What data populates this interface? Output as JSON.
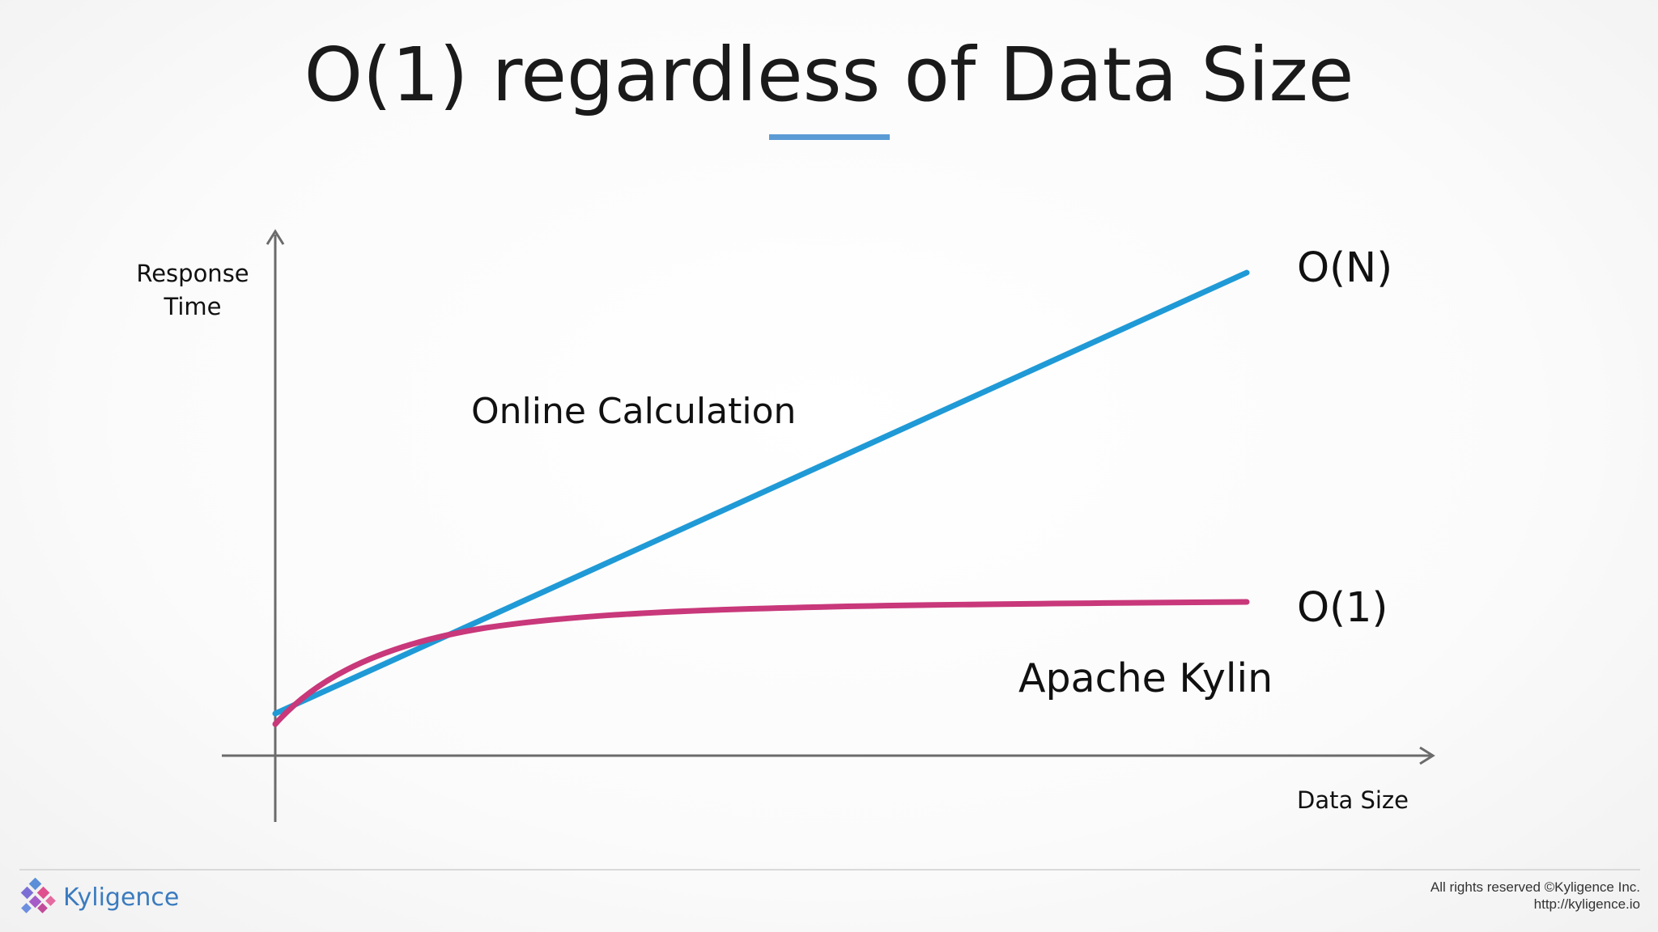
{
  "slide": {
    "title": "O(1) regardless of Data Size",
    "accent_color": "#5b9bd5"
  },
  "diagram": {
    "y_axis_label_line1": "Response",
    "y_axis_label_line2": "Time",
    "x_axis_label": "Data Size",
    "online_label": "Online Calculation",
    "kylin_label": "Apache Kylin",
    "on_label": "O(N)",
    "o1_label": "O(1)",
    "on_color": "#1f9ad6",
    "o1_color": "#c8387a",
    "axis_color": "#6b6b6b"
  },
  "footer": {
    "brand_name": "Kyligence",
    "brand_color": "#3a7bbf",
    "logo_icon": "kyligence-diamond-logo-icon",
    "copyright_line1": "All rights reserved ©Kyligence Inc.",
    "copyright_line2": "http://kyligence.io"
  }
}
